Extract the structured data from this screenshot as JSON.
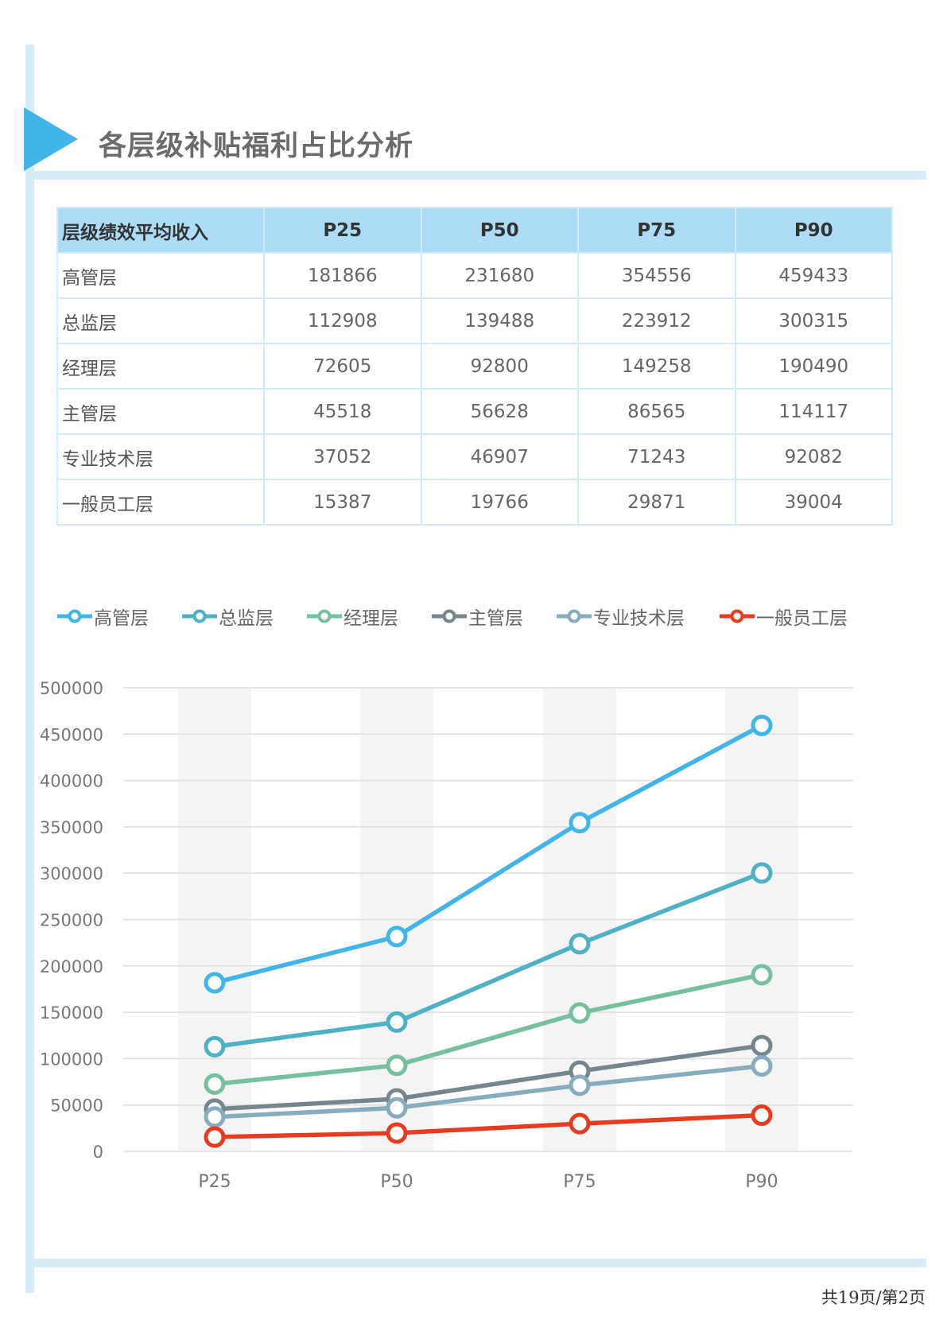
{
  "page": {
    "title": "各层级补贴福利占比分析",
    "footer": "共19页/第2页"
  },
  "table": {
    "header": [
      "层级绩效平均收入",
      "P25",
      "P50",
      "P75",
      "P90"
    ],
    "rows": [
      [
        "高管层",
        "181866",
        "231680",
        "354556",
        "459433"
      ],
      [
        "总监层",
        "112908",
        "139488",
        "223912",
        "300315"
      ],
      [
        "经理层",
        "72605",
        "92800",
        "149258",
        "190490"
      ],
      [
        "主管层",
        "45518",
        "56628",
        "86565",
        "114117"
      ],
      [
        "专业技术层",
        "37052",
        "46907",
        "71243",
        "92082"
      ],
      [
        "一般员工层",
        "15387",
        "19766",
        "29871",
        "39004"
      ]
    ]
  },
  "chart_data": {
    "type": "line",
    "categories": [
      "P25",
      "P50",
      "P75",
      "P90"
    ],
    "ylim": [
      0,
      500000
    ],
    "yticks": [
      0,
      50000,
      100000,
      150000,
      200000,
      250000,
      300000,
      350000,
      400000,
      450000,
      500000
    ],
    "grid": true,
    "legend": "top",
    "series": [
      {
        "name": "高管层",
        "values": [
          181866,
          231680,
          354556,
          459433
        ],
        "color": "#41b4e8"
      },
      {
        "name": "总监层",
        "values": [
          112908,
          139488,
          223912,
          300315
        ],
        "color": "#4fb1c4"
      },
      {
        "name": "经理层",
        "values": [
          72605,
          92800,
          149258,
          190490
        ],
        "color": "#76c0a0"
      },
      {
        "name": "主管层",
        "values": [
          45518,
          56628,
          86565,
          114117
        ],
        "color": "#75868d"
      },
      {
        "name": "专业技术层",
        "values": [
          37052,
          46907,
          71243,
          92082
        ],
        "color": "#86acbd"
      },
      {
        "name": "一般员工层",
        "values": [
          15387,
          19766,
          29871,
          39004
        ],
        "color": "#e83c22"
      }
    ]
  }
}
